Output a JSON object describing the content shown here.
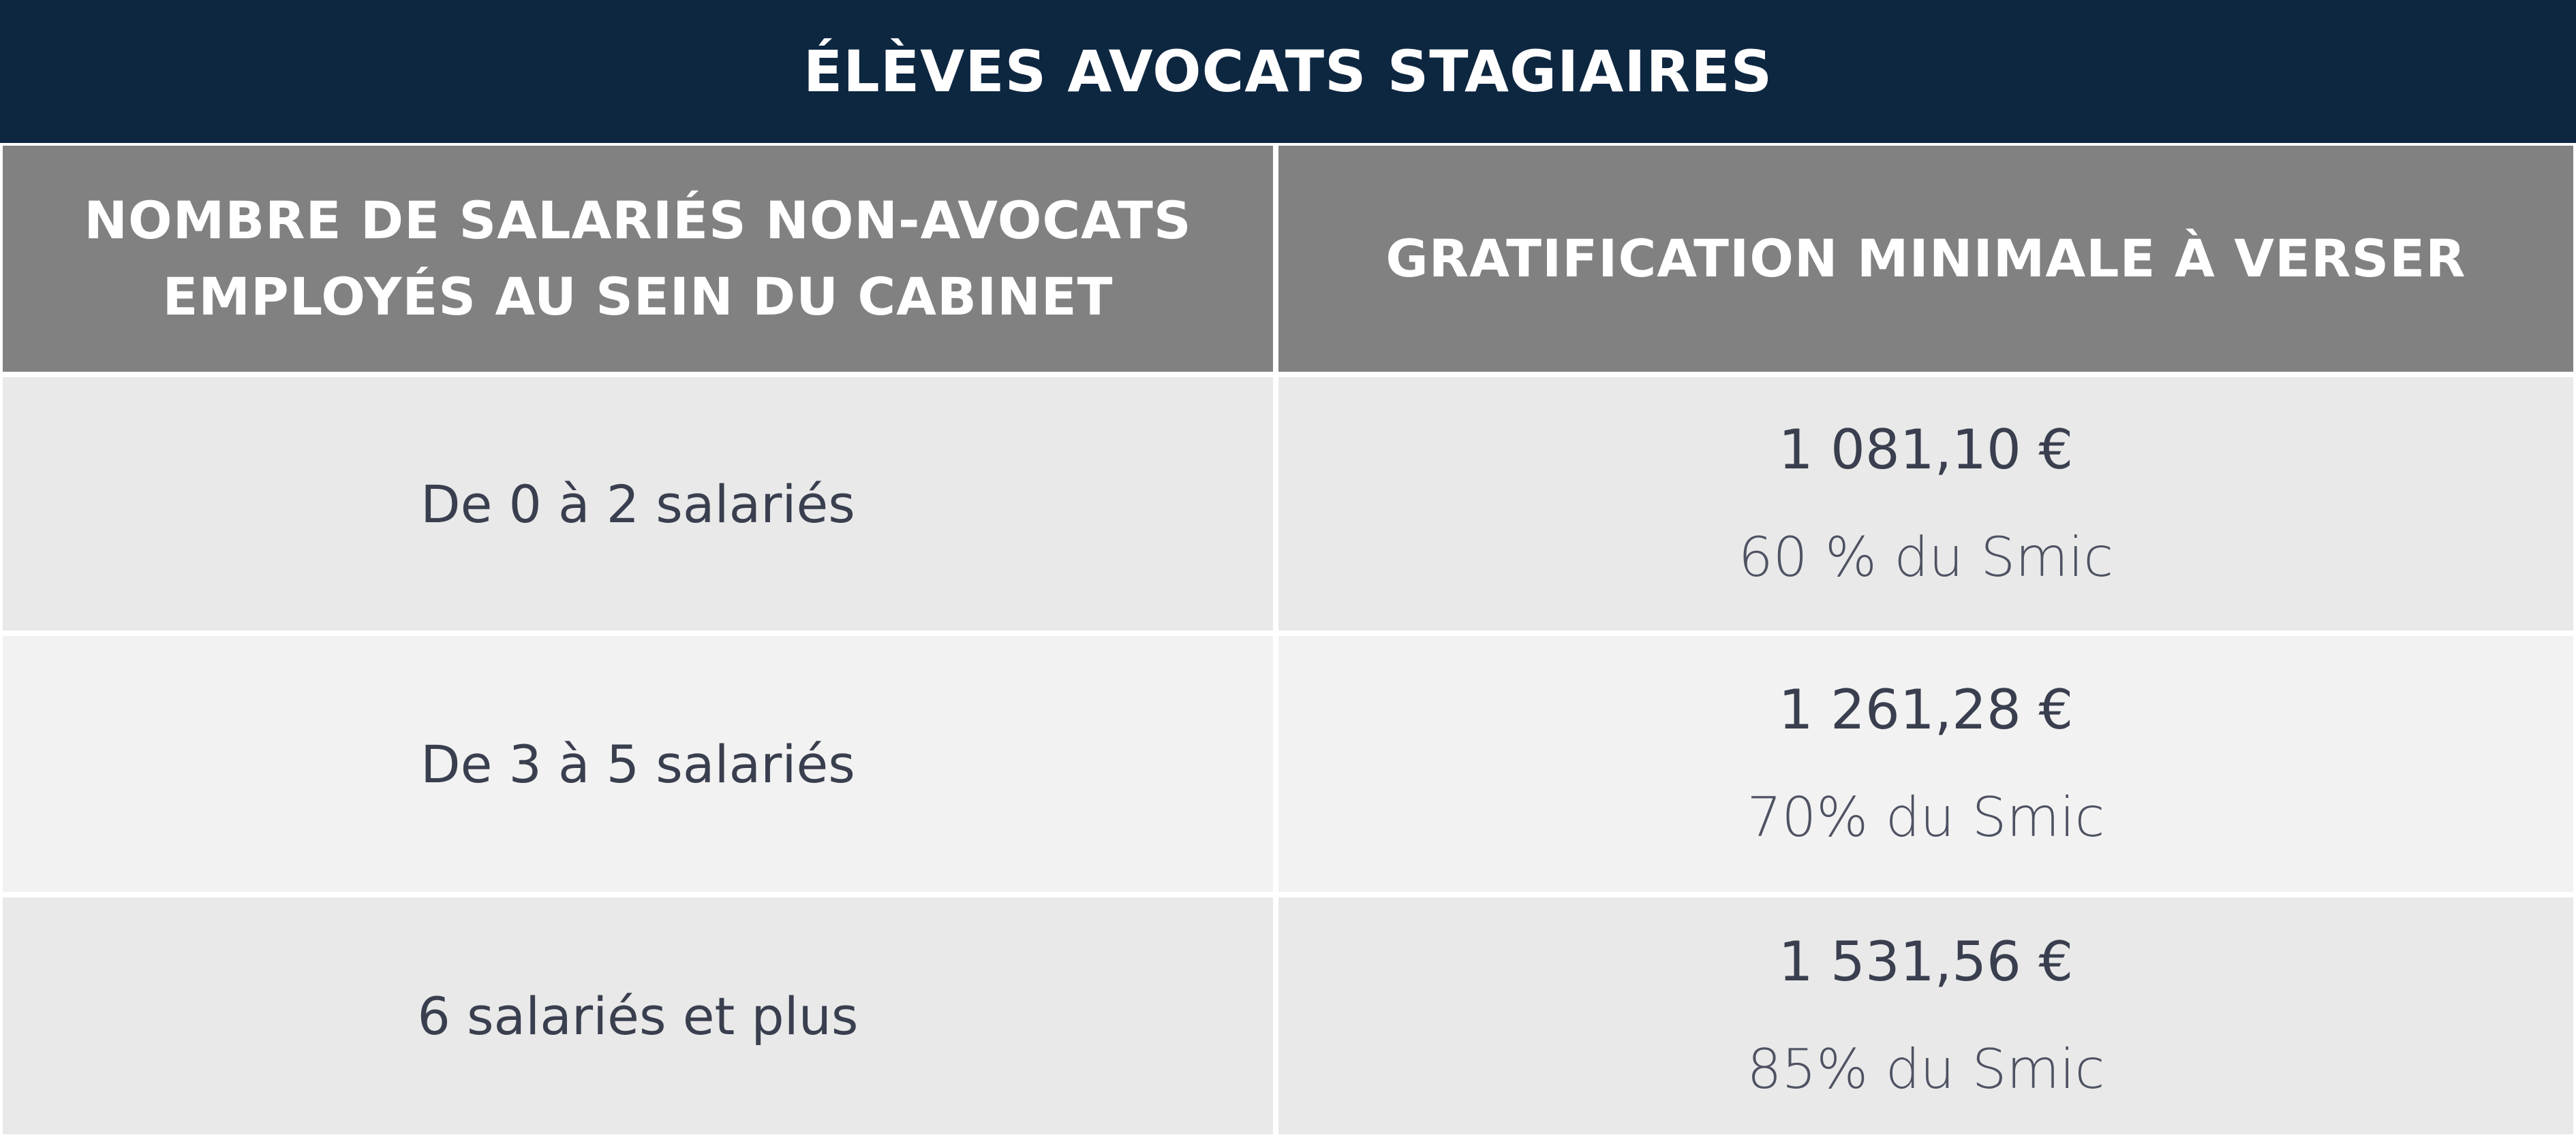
{
  "title": "ÉLÈVES AVOCATS STAGIAIRES",
  "header": {
    "col1_line1": "NOMBRE DE SALARIÉS NON-AVOCATS",
    "col1_line2": "EMPLOYÉS AU SEIN DU CABINET",
    "col2": "GRATIFICATION MINIMALE À VERSER"
  },
  "rows": [
    {
      "range": "De 0 à 2 salariés",
      "amount": "1 081,10 €",
      "percent": "60 % du Smic"
    },
    {
      "range": "De 3 à 5 salariés",
      "amount": "1 261,28 €",
      "percent": "70% du Smic"
    },
    {
      "range": "6 salariés et plus",
      "amount": "1 531,56 €",
      "percent": "85% du Smic"
    }
  ],
  "colors": {
    "title_bg": "#0e2741",
    "header_bg": "#818181",
    "row_odd_bg": "#e9e9e9",
    "row_even_bg": "#f2f2f2",
    "body_text": "#3a3f4f"
  }
}
